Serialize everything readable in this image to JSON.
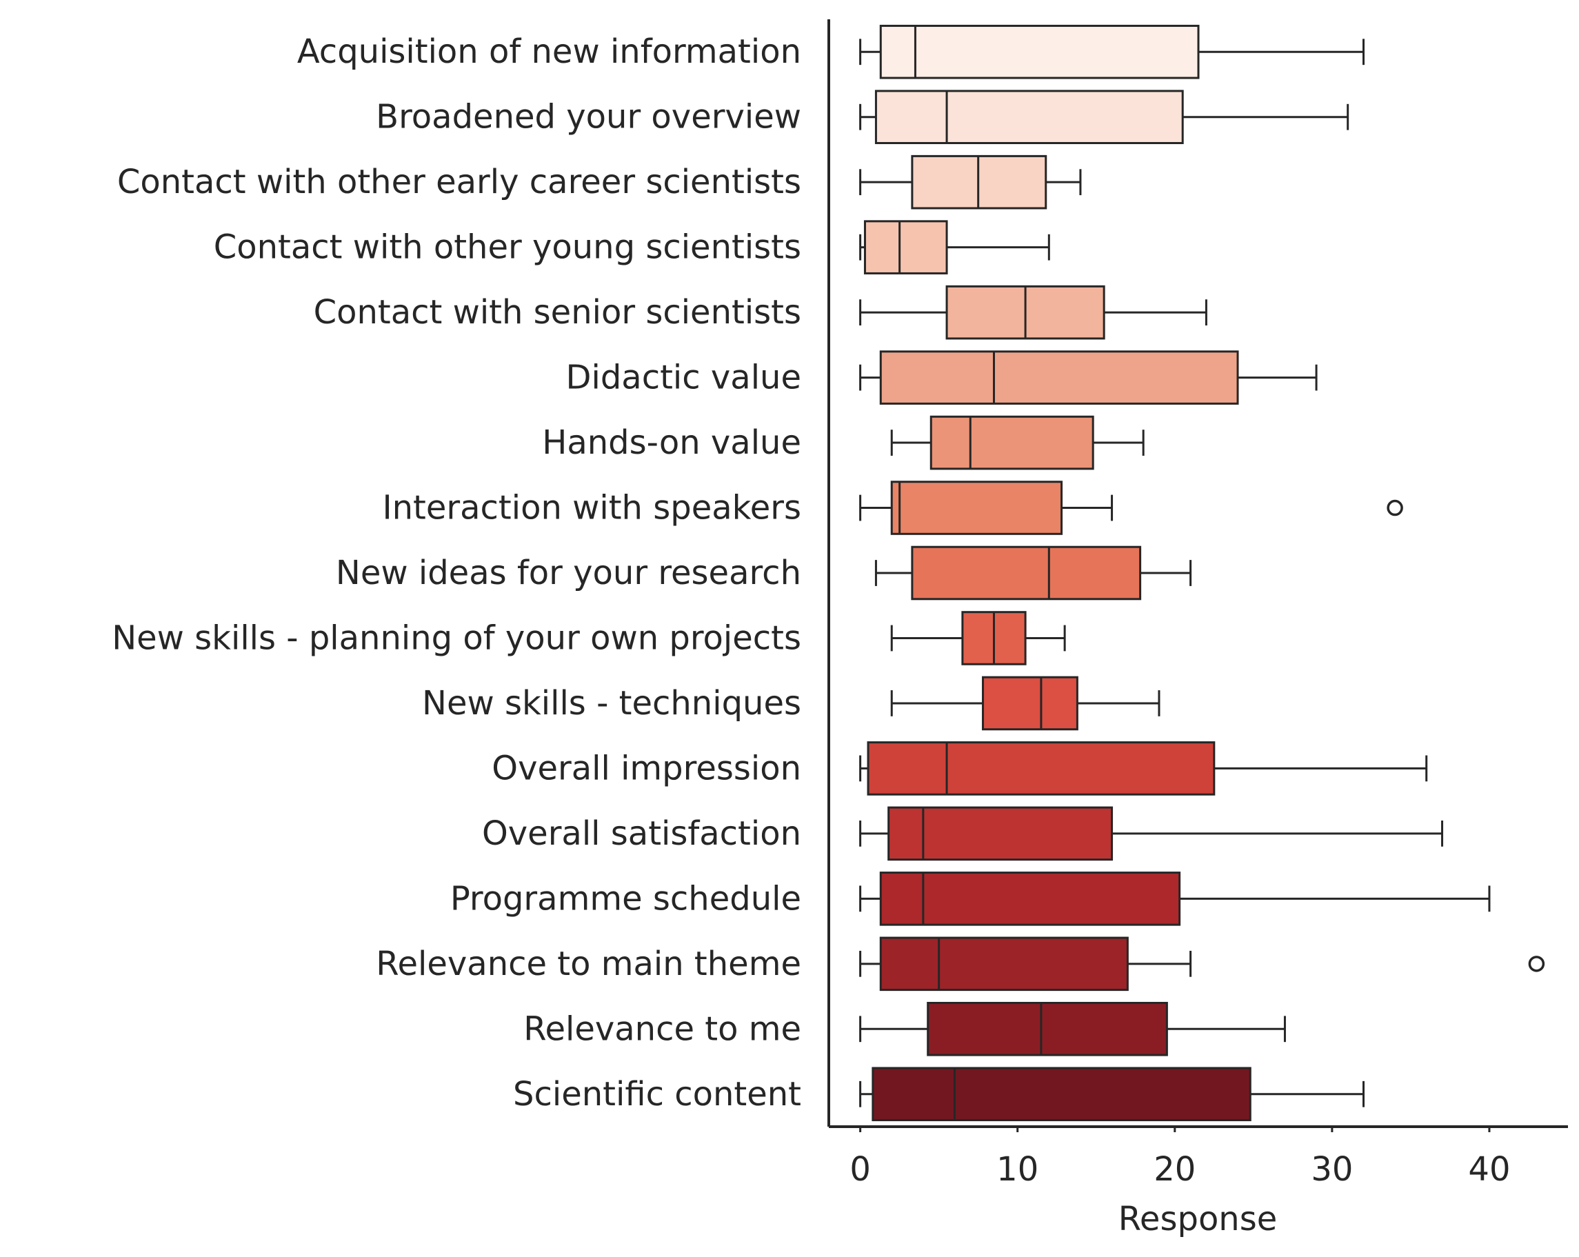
{
  "chart_data": {
    "type": "boxplot",
    "orientation": "horizontal",
    "title": "",
    "xlabel": "Response",
    "ylabel": "",
    "xlim": [
      -2,
      45
    ],
    "xticks": [
      0,
      10,
      20,
      30,
      40
    ],
    "xtick_labels": [
      "0",
      "10",
      "20",
      "30",
      "40"
    ],
    "grid": false,
    "palette": "Reds",
    "categories": [
      {
        "label": "Acquisition of new information",
        "whisker_low": 0,
        "q1": 1.3,
        "median": 3.5,
        "q3": 21.5,
        "whisker_high": 32,
        "outliers": [],
        "color": "#fdeee7"
      },
      {
        "label": "Broadened your overview",
        "whisker_low": 0,
        "q1": 1.0,
        "median": 5.5,
        "q3": 20.5,
        "whisker_high": 31,
        "outliers": [],
        "color": "#fbe3d9"
      },
      {
        "label": "Contact with other early career scientists",
        "whisker_low": 0,
        "q1": 3.3,
        "median": 7.5,
        "q3": 11.8,
        "whisker_high": 14,
        "outliers": [],
        "color": "#f9d3c3"
      },
      {
        "label": "Contact with other young scientists",
        "whisker_low": 0,
        "q1": 0.3,
        "median": 2.5,
        "q3": 5.5,
        "whisker_high": 12,
        "outliers": [],
        "color": "#f6c4ae"
      },
      {
        "label": "Contact with senior scientists",
        "whisker_low": 0,
        "q1": 5.5,
        "median": 10.5,
        "q3": 15.5,
        "whisker_high": 22,
        "outliers": [],
        "color": "#f2b49c"
      },
      {
        "label": "Didactic value",
        "whisker_low": 0,
        "q1": 1.3,
        "median": 8.5,
        "q3": 24.0,
        "whisker_high": 29,
        "outliers": [],
        "color": "#eea48a"
      },
      {
        "label": "Hands-on value",
        "whisker_low": 2,
        "q1": 4.5,
        "median": 7.0,
        "q3": 14.8,
        "whisker_high": 18,
        "outliers": [],
        "color": "#ec9477"
      },
      {
        "label": "Interaction with speakers",
        "whisker_low": 0,
        "q1": 2.0,
        "median": 2.5,
        "q3": 12.8,
        "whisker_high": 16,
        "outliers": [
          34
        ],
        "color": "#e98466"
      },
      {
        "label": "New ideas for your research",
        "whisker_low": 1,
        "q1": 3.3,
        "median": 12.0,
        "q3": 17.8,
        "whisker_high": 21,
        "outliers": [],
        "color": "#e67459"
      },
      {
        "label": "New skills - planning of your own projects",
        "whisker_low": 2,
        "q1": 6.5,
        "median": 8.5,
        "q3": 10.5,
        "whisker_high": 13,
        "outliers": [],
        "color": "#e2614d"
      },
      {
        "label": "New skills - techniques",
        "whisker_low": 2,
        "q1": 7.8,
        "median": 11.5,
        "q3": 13.8,
        "whisker_high": 19,
        "outliers": [],
        "color": "#dc4f43"
      },
      {
        "label": "Overall impression",
        "whisker_low": 0,
        "q1": 0.5,
        "median": 5.5,
        "q3": 22.5,
        "whisker_high": 36,
        "outliers": [],
        "color": "#cf4239"
      },
      {
        "label": "Overall satisfaction",
        "whisker_low": 0,
        "q1": 1.8,
        "median": 4.0,
        "q3": 16.0,
        "whisker_high": 37,
        "outliers": [],
        "color": "#bd3332"
      },
      {
        "label": "Programme schedule",
        "whisker_low": 0,
        "q1": 1.3,
        "median": 4.0,
        "q3": 20.3,
        "whisker_high": 40,
        "outliers": [],
        "color": "#ac282b"
      },
      {
        "label": "Relevance to main theme",
        "whisker_low": 0,
        "q1": 1.3,
        "median": 5.0,
        "q3": 17.0,
        "whisker_high": 21,
        "outliers": [
          43
        ],
        "color": "#9c2328"
      },
      {
        "label": "Relevance to me",
        "whisker_low": 0,
        "q1": 4.3,
        "median": 11.5,
        "q3": 19.5,
        "whisker_high": 27,
        "outliers": [],
        "color": "#8a1d24"
      },
      {
        "label": "Scientific content",
        "whisker_low": 0,
        "q1": 0.8,
        "median": 6.0,
        "q3": 24.8,
        "whisker_high": 32,
        "outliers": [],
        "color": "#721720"
      }
    ]
  }
}
